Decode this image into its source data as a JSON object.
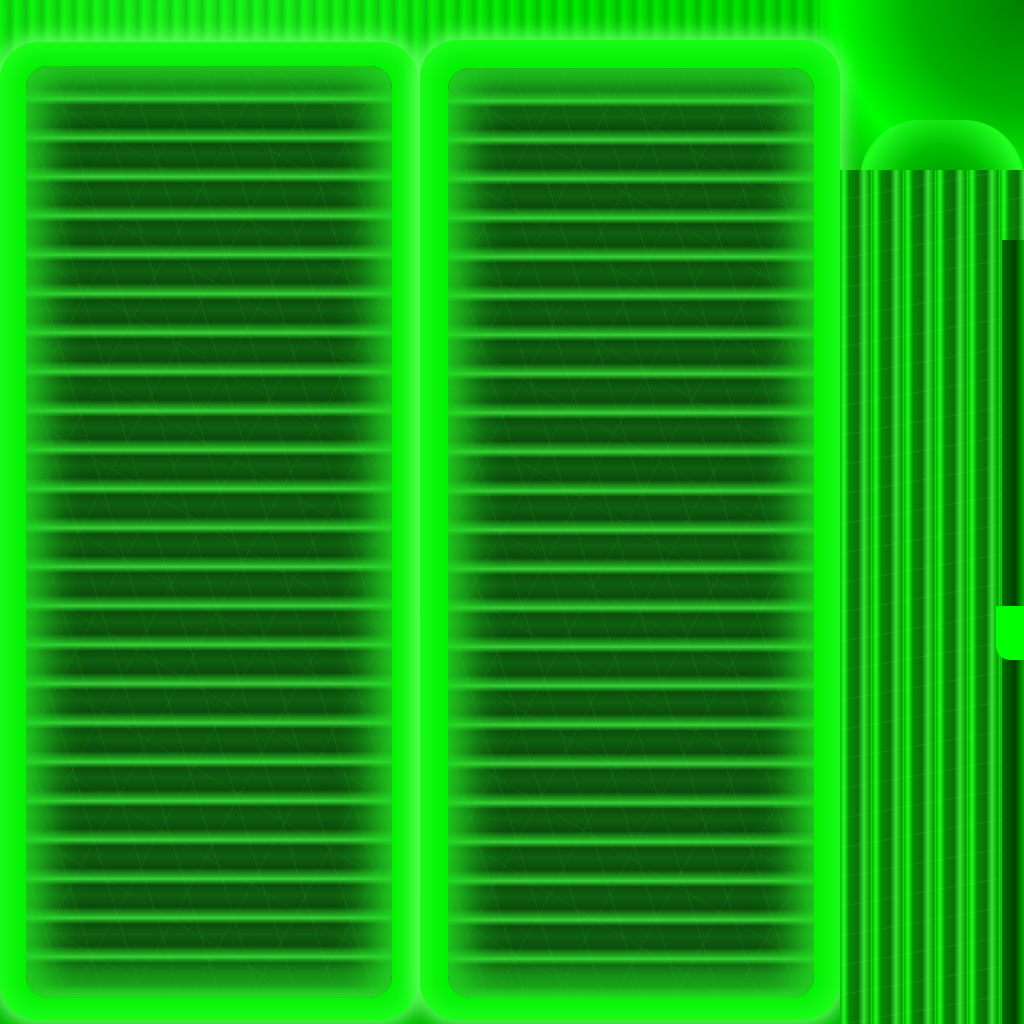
{
  "texture": {
    "subject": "",
    "palette": {
      "base": "#00f000",
      "highlight": "#40ff40",
      "slat_dark": "#0b4d0b",
      "slat_edge": "#3ad03a"
    },
    "panels": [
      {
        "name": "panel-left",
        "slat_count": 24
      },
      {
        "name": "panel-mid",
        "slat_count": 24
      }
    ]
  }
}
